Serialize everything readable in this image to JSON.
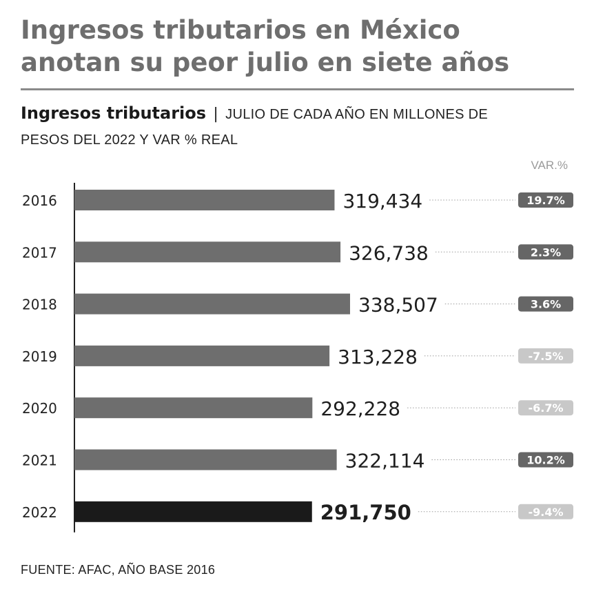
{
  "headline": {
    "line1": "Ingresos tributarios en México",
    "line2": "anotan su peor julio en siete años"
  },
  "subtitle": {
    "bold": "Ingresos tributarios",
    "separator": "|",
    "line1": "JULIO DE CADA AÑO EN MILLONES DE",
    "line2": "PESOS DEL 2022 Y VAR % REAL"
  },
  "source": "FUENTE: AFAC, AÑO BASE 2016",
  "colors": {
    "bar": "#6e6e6e",
    "bar_highlight": "#1a1a1a",
    "badge_positive": "#666666",
    "badge_negative": "#c8c8c8"
  },
  "chart_data": {
    "type": "bar",
    "orientation": "horizontal",
    "categories": [
      "2016",
      "2017",
      "2018",
      "2019",
      "2020",
      "2021",
      "2022"
    ],
    "values": [
      319434,
      326738,
      338507,
      313228,
      292228,
      322114,
      291750
    ],
    "value_labels": [
      "319,434",
      "326,738",
      "338,507",
      "313,228",
      "292,228",
      "322,114",
      "291,750"
    ],
    "var_header": "VAR.%",
    "var_labels": [
      "19.7%",
      "2.3%",
      "3.6%",
      "-7.5%",
      "-6.7%",
      "10.2%",
      "-9.4%"
    ],
    "var_values": [
      19.7,
      2.3,
      3.6,
      -7.5,
      -6.7,
      10.2,
      -9.4
    ],
    "highlight_category": "2022",
    "xlim": [
      0,
      338507
    ],
    "grid": false
  }
}
